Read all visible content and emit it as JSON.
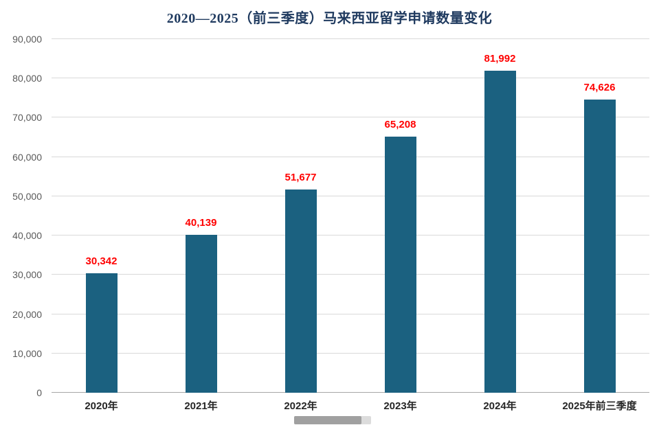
{
  "chart_data": {
    "type": "bar",
    "title": "2020—2025（前三季度）马来西亚留学申请数量变化",
    "categories": [
      "2020年",
      "2021年",
      "2022年",
      "2023年",
      "2024年",
      "2025年前三季度"
    ],
    "values": [
      30342,
      40139,
      51677,
      65208,
      81992,
      74626
    ],
    "value_labels": [
      "30,342",
      "40,139",
      "51,677",
      "65,208",
      "81,992",
      "74,626"
    ],
    "xlabel": "",
    "ylabel": "",
    "ylim": [
      0,
      90000
    ],
    "ytick_interval": 10000,
    "ytick_labels": [
      "0",
      "10,000",
      "20,000",
      "30,000",
      "40,000",
      "50,000",
      "60,000",
      "70,000",
      "80,000",
      "90,000"
    ],
    "grid": true,
    "legend": "none",
    "bar_color": "#1b6180",
    "value_label_color": "#ff0000",
    "title_color": "#1f3a5f",
    "gridline_color": "#d9d9d9",
    "axis_line_color": "#a6a6a6"
  }
}
